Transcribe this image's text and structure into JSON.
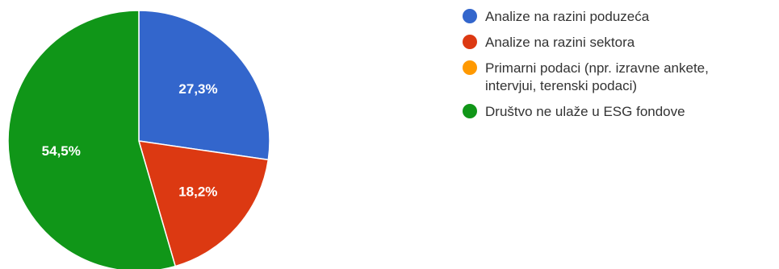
{
  "chart_data": {
    "type": "pie",
    "categories": [
      "Analize na razini poduzeća",
      "Analize na razini sektora",
      "Primarni podaci (npr. izravne ankete, intervjui, terenski podaci)",
      "Društvo ne ulaže u ESG fondove"
    ],
    "values": [
      27.3,
      18.2,
      0,
      54.5
    ],
    "value_labels": [
      "27,3%",
      "18,2%",
      "",
      "54,5%"
    ],
    "colors": [
      "#3366cc",
      "#dc3912",
      "#ff9900",
      "#109618"
    ],
    "legend_position": "right",
    "start": "top, clockwise"
  },
  "legend": {
    "items": [
      {
        "label_line1": "Analize na razini poduzeća",
        "label_line2": "",
        "color": "#3366cc"
      },
      {
        "label_line1": "Analize na razini sektora",
        "label_line2": "",
        "color": "#dc3912"
      },
      {
        "label_line1": "Primarni podaci (npr. izravne ankete,",
        "label_line2": "intervjui, terenski podaci)",
        "color": "#ff9900"
      },
      {
        "label_line1": "Društvo ne ulaže u ESG fondove",
        "label_line2": "",
        "color": "#109618"
      }
    ]
  }
}
